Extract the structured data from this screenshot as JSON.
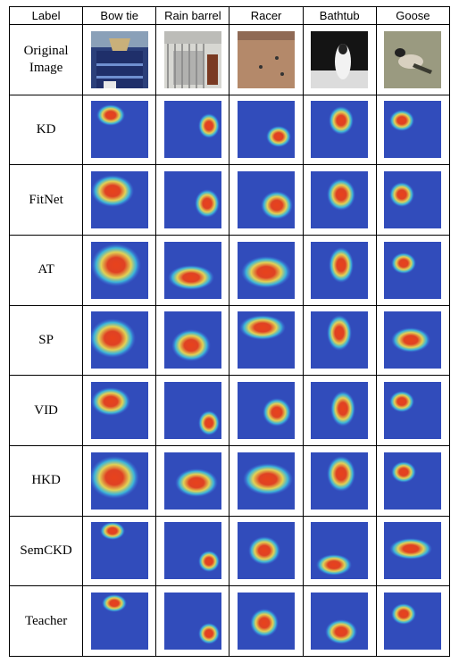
{
  "headers": [
    "Label",
    "Bow tie",
    "Rain barrel",
    "Racer",
    "Bathtub",
    "Goose"
  ],
  "rows": [
    {
      "label_lines": [
        "Original",
        "Image"
      ]
    },
    {
      "label_lines": [
        "KD"
      ]
    },
    {
      "label_lines": [
        "FitNet"
      ]
    },
    {
      "label_lines": [
        "AT"
      ]
    },
    {
      "label_lines": [
        "SP"
      ]
    },
    {
      "label_lines": [
        "VID"
      ]
    },
    {
      "label_lines": [
        "HKD"
      ]
    },
    {
      "label_lines": [
        "SemCKD"
      ]
    },
    {
      "label_lines": [
        "Teacher"
      ]
    }
  ],
  "heatmap_colors": {
    "cold": "#2a3aa8",
    "cool": "#3f6fe0",
    "mid": "#3fcfe0",
    "warm": "#f5e04a",
    "hot": "#e8421c"
  }
}
